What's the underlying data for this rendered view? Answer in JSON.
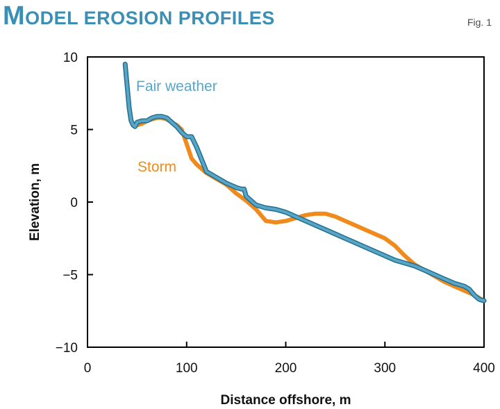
{
  "header": {
    "title_first": "M",
    "title_rest": "ODEL EROSION PROFILES",
    "fig_label": "Fig. 1"
  },
  "colors": {
    "title": "#3b8fb5",
    "fair_weather": "#5aa5c6",
    "fair_weather_edge": "#1f6f90",
    "storm": "#f08a1c"
  },
  "chart_data": {
    "type": "line",
    "title": "Model erosion profiles",
    "xlabel": "Distance offshore, m",
    "ylabel": "Elevation, m",
    "xlim": [
      0,
      400
    ],
    "ylim": [
      -10,
      10
    ],
    "xticks": [
      0,
      100,
      200,
      300,
      400
    ],
    "yticks": [
      10,
      5,
      0,
      -5,
      -10
    ],
    "xtick_labels": [
      "0",
      "100",
      "200",
      "300",
      "400"
    ],
    "ytick_labels": [
      "10",
      "5",
      "0",
      "−5",
      "−10"
    ],
    "grid": false,
    "series": [
      {
        "name": "Storm",
        "color": "#f08a1c",
        "x": [
          50,
          55,
          60,
          65,
          70,
          75,
          80,
          85,
          90,
          95,
          100,
          105,
          110,
          120,
          130,
          140,
          150,
          160,
          170,
          180,
          190,
          200,
          210,
          220,
          230,
          240,
          250,
          260,
          270,
          280,
          290,
          300,
          310,
          320,
          330,
          340,
          350,
          360,
          370,
          380,
          390,
          400
        ],
        "y": [
          5.3,
          5.4,
          5.6,
          5.7,
          5.8,
          5.8,
          5.7,
          5.5,
          5.3,
          5.0,
          4.0,
          3.0,
          2.6,
          2.0,
          1.6,
          1.2,
          0.6,
          0.1,
          -0.5,
          -1.3,
          -1.4,
          -1.3,
          -1.1,
          -0.9,
          -0.8,
          -0.8,
          -1.0,
          -1.3,
          -1.6,
          -1.9,
          -2.2,
          -2.5,
          -3.0,
          -3.7,
          -4.3,
          -4.7,
          -5.1,
          -5.5,
          -5.8,
          -6.1,
          -6.4,
          -6.8
        ]
      },
      {
        "name": "Fair weather",
        "color": "#5aa5c6",
        "x": [
          38,
          40,
          42,
          44,
          46,
          48,
          50,
          55,
          60,
          65,
          70,
          75,
          80,
          85,
          90,
          95,
          100,
          105,
          110,
          120,
          130,
          140,
          150,
          155,
          158,
          160,
          165,
          170,
          180,
          190,
          200,
          210,
          220,
          230,
          240,
          250,
          260,
          270,
          280,
          290,
          300,
          310,
          320,
          330,
          340,
          350,
          360,
          370,
          380,
          385,
          390,
          395,
          400
        ],
        "y": [
          9.5,
          8.0,
          6.5,
          5.6,
          5.3,
          5.2,
          5.5,
          5.6,
          5.6,
          5.8,
          5.9,
          5.9,
          5.8,
          5.5,
          5.2,
          4.8,
          4.5,
          4.5,
          3.8,
          2.1,
          1.7,
          1.3,
          1.0,
          0.9,
          0.9,
          0.4,
          0.1,
          -0.2,
          -0.4,
          -0.5,
          -0.7,
          -1.0,
          -1.3,
          -1.6,
          -1.9,
          -2.2,
          -2.5,
          -2.8,
          -3.1,
          -3.4,
          -3.7,
          -4.0,
          -4.2,
          -4.4,
          -4.7,
          -5.0,
          -5.3,
          -5.6,
          -5.8,
          -6.0,
          -6.4,
          -6.7,
          -6.8
        ]
      }
    ]
  }
}
